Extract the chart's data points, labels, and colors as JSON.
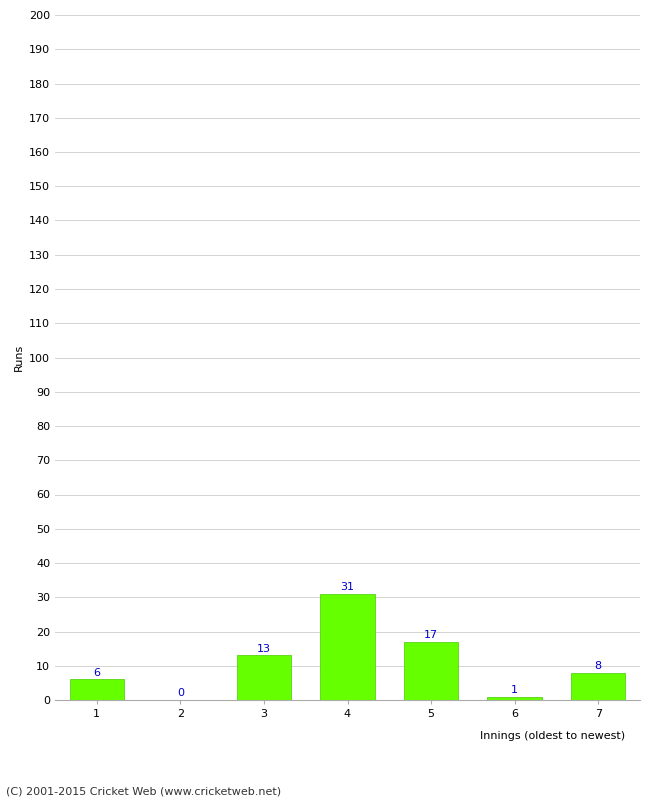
{
  "innings": [
    1,
    2,
    3,
    4,
    5,
    6,
    7
  ],
  "runs": [
    6,
    0,
    13,
    31,
    17,
    1,
    8
  ],
  "bar_color": "#66ff00",
  "bar_edge_color": "#44cc00",
  "label_color": "#0000cc",
  "ylabel": "Runs",
  "xlabel": "Innings (oldest to newest)",
  "ylim": [
    0,
    200
  ],
  "yticks": [
    0,
    10,
    20,
    30,
    40,
    50,
    60,
    70,
    80,
    90,
    100,
    110,
    120,
    130,
    140,
    150,
    160,
    170,
    180,
    190,
    200
  ],
  "background_color": "#ffffff",
  "grid_color": "#cccccc",
  "footer": "(C) 2001-2015 Cricket Web (www.cricketweb.net)",
  "label_fontsize": 8,
  "axis_fontsize": 8,
  "footer_fontsize": 8,
  "bar_width": 0.65
}
